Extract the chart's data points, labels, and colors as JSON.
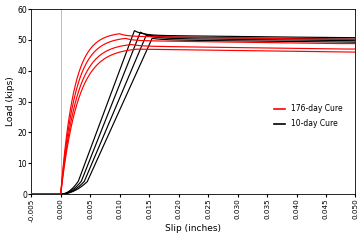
{
  "xlim": [
    -0.005,
    0.05
  ],
  "ylim": [
    0,
    60
  ],
  "xlabel": "Slip (inches)",
  "ylabel": "Load (kips)",
  "xticks": [
    -0.005,
    0.0,
    0.005,
    0.01,
    0.015,
    0.02,
    0.025,
    0.03,
    0.035,
    0.04,
    0.045,
    0.05
  ],
  "yticks": [
    0,
    10,
    20,
    30,
    40,
    50,
    60
  ],
  "legend": [
    {
      "label": "176-day Cure",
      "color": "red"
    },
    {
      "label": "10-day Cure",
      "color": "black"
    }
  ],
  "black_curves": [
    {
      "k": 700,
      "peak_x": 0.0125,
      "peak_load": 53.0,
      "plateau": 51.5,
      "shakedown_end": 0.003
    },
    {
      "k": 650,
      "peak_x": 0.0135,
      "peak_load": 52.5,
      "plateau": 51.0,
      "shakedown_end": 0.0035
    },
    {
      "k": 580,
      "peak_x": 0.0145,
      "peak_load": 51.5,
      "plateau": 50.5,
      "shakedown_end": 0.004
    },
    {
      "k": 520,
      "peak_x": 0.0155,
      "peak_load": 50.5,
      "plateau": 50.0,
      "shakedown_end": 0.0045
    }
  ],
  "red_curves": [
    {
      "k": 900,
      "peak_x": 0.01,
      "peak_load": 52.0,
      "plateau": 51.2
    },
    {
      "k": 820,
      "peak_x": 0.011,
      "peak_load": 50.5,
      "plateau": 49.8
    },
    {
      "k": 700,
      "peak_x": 0.012,
      "peak_load": 48.5,
      "plateau": 48.0
    },
    {
      "k": 620,
      "peak_x": 0.013,
      "peak_load": 47.0,
      "plateau": 47.0
    }
  ],
  "vline_x": 0.0,
  "vline_color": "#bbbbbb",
  "background": "#ffffff",
  "line_width": 0.85
}
